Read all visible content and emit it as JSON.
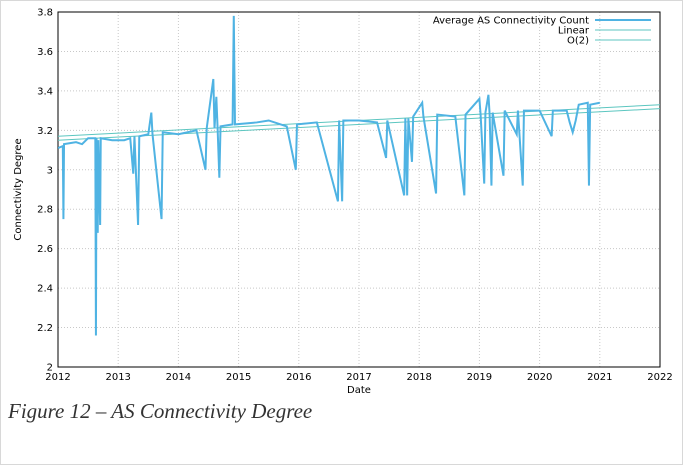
{
  "chart_data": {
    "type": "line",
    "x_label": "Date",
    "y_label": "Connectivity Degree",
    "xlim": [
      2012,
      2022
    ],
    "xticks": [
      2012,
      2013,
      2014,
      2015,
      2016,
      2017,
      2018,
      2019,
      2020,
      2021,
      2022
    ],
    "ylim": [
      2,
      3.8
    ],
    "yticks": [
      2,
      2.2,
      2.4,
      2.6,
      2.8,
      3,
      3.2,
      3.4,
      3.6,
      3.8
    ],
    "grid": true,
    "legend": "top-right",
    "series": [
      {
        "name": "Average AS Connectivity Count",
        "color": "#4fb3e3",
        "width": 2,
        "x": [
          2012.0,
          2012.08,
          2012.09,
          2012.1,
          2012.3,
          2012.4,
          2012.5,
          2012.62,
          2012.63,
          2012.64,
          2012.66,
          2012.67,
          2012.7,
          2012.71,
          2012.9,
          2013.1,
          2013.2,
          2013.25,
          2013.27,
          2013.33,
          2013.35,
          2013.5,
          2013.55,
          2013.57,
          2013.72,
          2013.74,
          2014.0,
          2014.3,
          2014.45,
          2014.47,
          2014.58,
          2014.6,
          2014.63,
          2014.65,
          2014.68,
          2014.7,
          2014.9,
          2014.92,
          2014.94,
          2015.3,
          2015.5,
          2015.8,
          2015.95,
          2015.97,
          2016.3,
          2016.65,
          2016.67,
          2016.72,
          2016.74,
          2017.0,
          2017.3,
          2017.45,
          2017.47,
          2017.75,
          2017.77,
          2017.8,
          2017.82,
          2017.88,
          2017.9,
          2018.05,
          2018.07,
          2018.28,
          2018.3,
          2018.6,
          2018.75,
          2018.77,
          2019.0,
          2019.02,
          2019.08,
          2019.1,
          2019.15,
          2019.17,
          2019.2,
          2019.22,
          2019.4,
          2019.42,
          2019.62,
          2019.64,
          2019.72,
          2019.74,
          2020.0,
          2020.2,
          2020.22,
          2020.45,
          2020.5,
          2020.55,
          2020.6,
          2020.65,
          2020.8,
          2020.82,
          2020.84,
          2021.0
        ],
        "values": [
          3.11,
          3.12,
          2.75,
          3.13,
          3.14,
          3.13,
          3.16,
          3.16,
          2.16,
          3.16,
          2.68,
          3.15,
          2.72,
          3.16,
          3.15,
          3.15,
          3.16,
          2.98,
          3.17,
          2.72,
          3.17,
          3.18,
          3.29,
          3.18,
          2.75,
          3.19,
          3.18,
          3.2,
          3.0,
          3.21,
          3.46,
          3.21,
          3.37,
          3.22,
          2.96,
          3.22,
          3.23,
          3.78,
          3.23,
          3.24,
          3.25,
          3.22,
          3.0,
          3.23,
          3.24,
          2.84,
          3.25,
          2.84,
          3.25,
          3.25,
          3.24,
          3.06,
          3.25,
          2.87,
          3.26,
          2.87,
          3.26,
          3.04,
          3.27,
          3.34,
          3.27,
          2.88,
          3.28,
          3.27,
          2.87,
          3.28,
          3.36,
          3.28,
          2.93,
          3.29,
          3.38,
          3.28,
          2.92,
          3.29,
          2.97,
          3.3,
          3.18,
          3.3,
          2.92,
          3.3,
          3.3,
          3.17,
          3.3,
          3.3,
          3.24,
          3.19,
          3.25,
          3.33,
          3.34,
          2.92,
          3.33,
          3.34
        ]
      },
      {
        "name": "Linear",
        "color": "#5cc6c0",
        "width": 1,
        "x": [
          2012,
          2022
        ],
        "values": [
          3.15,
          3.31
        ]
      },
      {
        "name": "O(2)",
        "color": "#5cc6c0",
        "width": 1,
        "x": [
          2012,
          2022
        ],
        "values": [
          3.17,
          3.33
        ]
      }
    ]
  },
  "caption": "Figure 12 – AS Connectivity Degree"
}
